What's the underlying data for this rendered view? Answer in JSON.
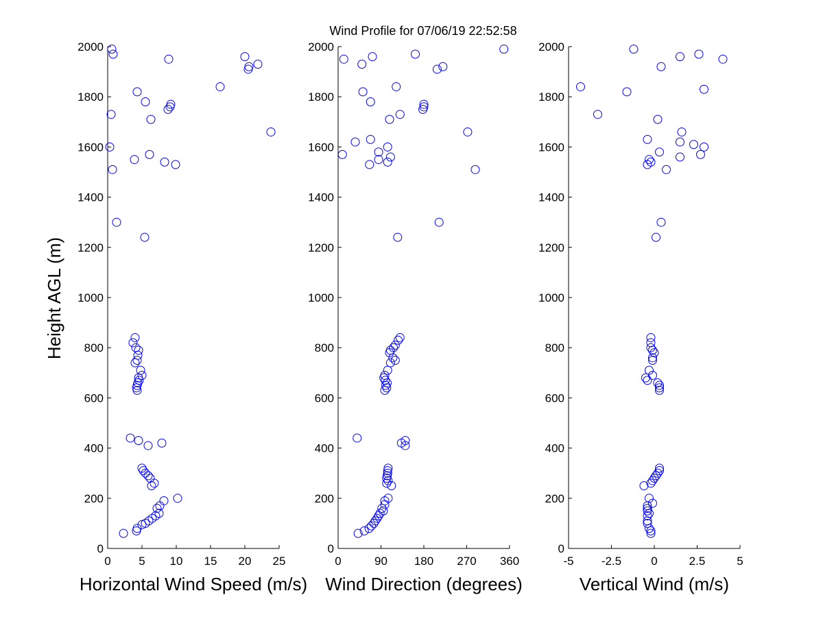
{
  "chart_data": {
    "title": "Wind Profile for  07/06/19 22:52:58",
    "ylabel": "Height AGL (m)",
    "ylim": [
      0,
      2000
    ],
    "yticks": [
      "0",
      "200",
      "400",
      "600",
      "800",
      "1000",
      "1200",
      "1400",
      "1600",
      "1800",
      "2000"
    ],
    "panels": [
      {
        "type": "scatter",
        "xlabel": "Horizontal Wind Speed (m/s)",
        "xlim": [
          0,
          25
        ],
        "xticks": [
          "0",
          "5",
          "10",
          "15",
          "20",
          "25"
        ],
        "xtick_values": [
          0,
          5,
          10,
          15,
          20,
          25
        ],
        "marker_color": "#0000ff",
        "points": [
          [
            2.3,
            60
          ],
          [
            4.2,
            70
          ],
          [
            4.3,
            80
          ],
          [
            5.0,
            95
          ],
          [
            5.5,
            100
          ],
          [
            6.0,
            110
          ],
          [
            6.5,
            120
          ],
          [
            7.0,
            130
          ],
          [
            7.5,
            140
          ],
          [
            7.2,
            160
          ],
          [
            7.6,
            170
          ],
          [
            8.2,
            190
          ],
          [
            10.2,
            200
          ],
          [
            6.4,
            250
          ],
          [
            6.8,
            260
          ],
          [
            6.2,
            280
          ],
          [
            5.9,
            290
          ],
          [
            5.5,
            300
          ],
          [
            5.2,
            310
          ],
          [
            5.0,
            320
          ],
          [
            5.9,
            410
          ],
          [
            7.9,
            420
          ],
          [
            4.5,
            430
          ],
          [
            3.3,
            440
          ],
          [
            4.3,
            630
          ],
          [
            4.2,
            640
          ],
          [
            4.3,
            650
          ],
          [
            4.4,
            660
          ],
          [
            4.6,
            670
          ],
          [
            4.5,
            680
          ],
          [
            5.0,
            690
          ],
          [
            4.8,
            710
          ],
          [
            4.0,
            740
          ],
          [
            4.3,
            750
          ],
          [
            4.4,
            770
          ],
          [
            4.5,
            790
          ],
          [
            4.1,
            800
          ],
          [
            3.7,
            820
          ],
          [
            4.0,
            840
          ],
          [
            5.4,
            1240
          ],
          [
            1.3,
            1300
          ],
          [
            0.7,
            1510
          ],
          [
            9.9,
            1530
          ],
          [
            8.3,
            1540
          ],
          [
            3.9,
            1550
          ],
          [
            6.1,
            1570
          ],
          [
            0.3,
            1600
          ],
          [
            23.8,
            1660
          ],
          [
            6.3,
            1710
          ],
          [
            0.5,
            1730
          ],
          [
            8.8,
            1750
          ],
          [
            9.1,
            1760
          ],
          [
            9.2,
            1770
          ],
          [
            5.5,
            1780
          ],
          [
            4.3,
            1820
          ],
          [
            16.4,
            1840
          ],
          [
            20.5,
            1910
          ],
          [
            20.6,
            1920
          ],
          [
            21.9,
            1930
          ],
          [
            8.9,
            1950
          ],
          [
            20.0,
            1960
          ],
          [
            0.8,
            1970
          ],
          [
            0.6,
            1990
          ]
        ]
      },
      {
        "type": "scatter",
        "xlabel": "Wind Direction (degrees)",
        "xlim": [
          0,
          360
        ],
        "xticks": [
          "0",
          "90",
          "180",
          "270",
          "360"
        ],
        "xtick_values": [
          0,
          90,
          180,
          270,
          360
        ],
        "marker_color": "#0000ff",
        "points": [
          [
            42,
            60
          ],
          [
            55,
            70
          ],
          [
            65,
            80
          ],
          [
            70,
            90
          ],
          [
            75,
            100
          ],
          [
            78,
            110
          ],
          [
            82,
            120
          ],
          [
            85,
            130
          ],
          [
            88,
            140
          ],
          [
            95,
            150
          ],
          [
            92,
            160
          ],
          [
            98,
            175
          ],
          [
            98,
            190
          ],
          [
            105,
            200
          ],
          [
            112,
            250
          ],
          [
            102,
            260
          ],
          [
            105,
            270
          ],
          [
            102,
            280
          ],
          [
            103,
            290
          ],
          [
            104,
            300
          ],
          [
            104,
            310
          ],
          [
            105,
            320
          ],
          [
            141,
            410
          ],
          [
            133,
            420
          ],
          [
            141,
            430
          ],
          [
            40,
            440
          ],
          [
            98,
            630
          ],
          [
            102,
            640
          ],
          [
            100,
            650
          ],
          [
            103,
            660
          ],
          [
            99,
            670
          ],
          [
            96,
            680
          ],
          [
            98,
            690
          ],
          [
            104,
            710
          ],
          [
            110,
            740
          ],
          [
            120,
            750
          ],
          [
            115,
            760
          ],
          [
            108,
            780
          ],
          [
            110,
            790
          ],
          [
            116,
            800
          ],
          [
            120,
            810
          ],
          [
            126,
            830
          ],
          [
            130,
            840
          ],
          [
            125,
            1240
          ],
          [
            212,
            1300
          ],
          [
            288,
            1510
          ],
          [
            66,
            1530
          ],
          [
            104,
            1540
          ],
          [
            85,
            1550
          ],
          [
            110,
            1560
          ],
          [
            9,
            1570
          ],
          [
            85,
            1580
          ],
          [
            104,
            1600
          ],
          [
            36,
            1620
          ],
          [
            68,
            1630
          ],
          [
            272,
            1660
          ],
          [
            108,
            1710
          ],
          [
            130,
            1730
          ],
          [
            178,
            1750
          ],
          [
            180,
            1760
          ],
          [
            180,
            1770
          ],
          [
            68,
            1780
          ],
          [
            52,
            1820
          ],
          [
            122,
            1840
          ],
          [
            208,
            1910
          ],
          [
            220,
            1920
          ],
          [
            50,
            1930
          ],
          [
            12,
            1950
          ],
          [
            72,
            1960
          ],
          [
            162,
            1970
          ],
          [
            348,
            1990
          ]
        ]
      },
      {
        "type": "scatter",
        "xlabel": "Vertical Wind (m/s)",
        "xlim": [
          -5,
          5
        ],
        "xticks": [
          "-5",
          "-2.5",
          "0",
          "2.5",
          "5"
        ],
        "xtick_values": [
          -5,
          -2.5,
          0,
          2.5,
          5
        ],
        "marker_color": "#0000ff",
        "points": [
          [
            -0.2,
            60
          ],
          [
            -0.2,
            70
          ],
          [
            -0.3,
            80
          ],
          [
            -0.4,
            100
          ],
          [
            -0.4,
            110
          ],
          [
            -0.4,
            130
          ],
          [
            -0.3,
            140
          ],
          [
            -0.4,
            150
          ],
          [
            -0.4,
            160
          ],
          [
            -0.4,
            170
          ],
          [
            -0.1,
            180
          ],
          [
            -0.3,
            200
          ],
          [
            -0.6,
            250
          ],
          [
            -0.2,
            260
          ],
          [
            -0.1,
            270
          ],
          [
            0.0,
            280
          ],
          [
            0.1,
            290
          ],
          [
            0.2,
            300
          ],
          [
            0.3,
            310
          ],
          [
            0.3,
            320
          ],
          [
            0.3,
            630
          ],
          [
            0.3,
            640
          ],
          [
            0.3,
            650
          ],
          [
            0.2,
            660
          ],
          [
            -0.4,
            670
          ],
          [
            -0.5,
            680
          ],
          [
            -0.1,
            690
          ],
          [
            -0.3,
            710
          ],
          [
            -0.1,
            750
          ],
          [
            -0.1,
            760
          ],
          [
            0.0,
            780
          ],
          [
            -0.1,
            790
          ],
          [
            -0.2,
            800
          ],
          [
            -0.2,
            820
          ],
          [
            -0.2,
            840
          ],
          [
            0.1,
            1240
          ],
          [
            0.4,
            1300
          ],
          [
            0.7,
            1510
          ],
          [
            -0.4,
            1530
          ],
          [
            -0.2,
            1540
          ],
          [
            -0.3,
            1550
          ],
          [
            1.5,
            1560
          ],
          [
            2.7,
            1570
          ],
          [
            0.3,
            1580
          ],
          [
            2.9,
            1600
          ],
          [
            2.3,
            1610
          ],
          [
            1.5,
            1620
          ],
          [
            -0.4,
            1630
          ],
          [
            1.6,
            1660
          ],
          [
            0.2,
            1710
          ],
          [
            -3.3,
            1730
          ],
          [
            -1.6,
            1820
          ],
          [
            2.9,
            1830
          ],
          [
            -4.3,
            1840
          ],
          [
            0.4,
            1920
          ],
          [
            4.0,
            1950
          ],
          [
            1.5,
            1960
          ],
          [
            2.6,
            1970
          ],
          [
            -1.2,
            1990
          ]
        ]
      }
    ]
  }
}
